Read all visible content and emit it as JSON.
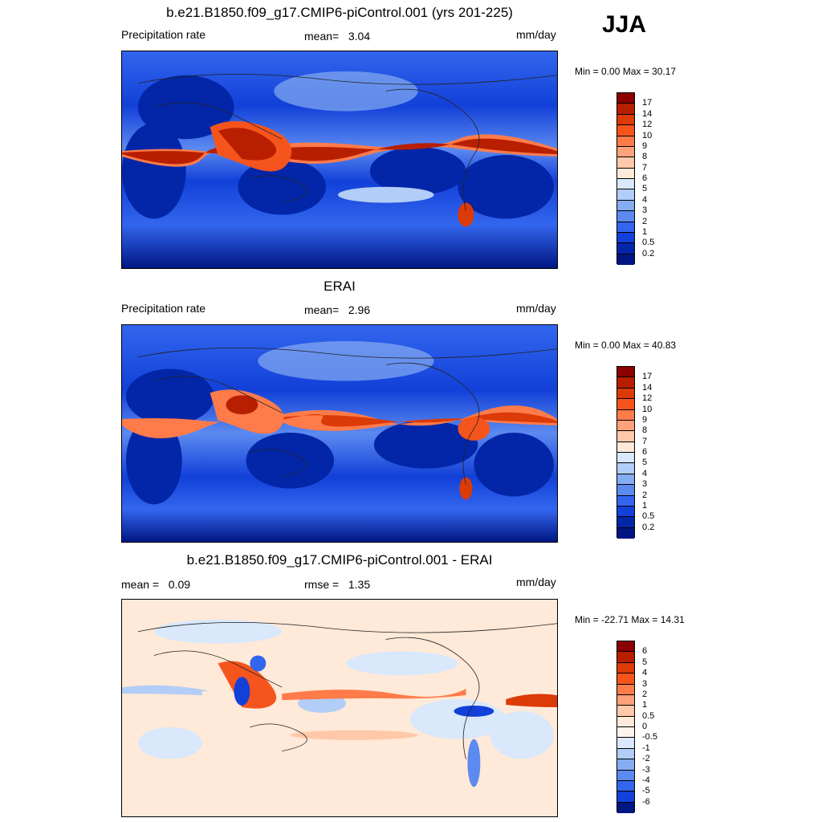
{
  "season": "JJA",
  "panels": [
    {
      "title": "b.e21.B1850.f09_g17.CMIP6-piControl.001 (yrs 201-225)",
      "left_label": "Precipitation rate",
      "center_label": "mean=",
      "center_value": "3.04",
      "units": "mm/day",
      "minmax": "Min =   0.00 Max =  30.17",
      "palette": "full"
    },
    {
      "title": "ERAI",
      "left_label": "Precipitation rate",
      "center_label": "mean=",
      "center_value": "2.96",
      "units": "mm/day",
      "minmax": "Min =   0.00 Max =  40.83",
      "palette": "full"
    },
    {
      "title": "b.e21.B1850.f09_g17.CMIP6-piControl.001 - ERAI",
      "left_label": "mean =",
      "left_value": "0.09",
      "center_label": "rmse =",
      "center_value": "1.35",
      "units": "mm/day",
      "minmax": "Min = -22.71 Max =  14.31",
      "palette": "diff"
    }
  ],
  "chart_data": [
    {
      "type": "heatmap",
      "title": "b.e21.B1850.f09_g17.CMIP6-piControl.001 (yrs 201-225)",
      "variable": "Precipitation rate",
      "units": "mm/day",
      "mean": 3.04,
      "min": 0.0,
      "max": 30.17,
      "colorbar_levels": [
        "17",
        "14",
        "12",
        "10",
        "9",
        "8",
        "7",
        "6",
        "5",
        "4",
        "3",
        "2",
        "1",
        "0.5",
        "0.2"
      ],
      "colors": [
        "#8b0000",
        "#b81e00",
        "#dc3a06",
        "#f5541d",
        "#ff7b4a",
        "#ffa17a",
        "#ffc8a8",
        "#ffe9d8",
        "#d9e8fb",
        "#b2cdf7",
        "#86acf2",
        "#5c8af0",
        "#3366ee",
        "#1240d8",
        "#0326a8",
        "#001683"
      ]
    },
    {
      "type": "heatmap",
      "title": "ERAI",
      "variable": "Precipitation rate",
      "units": "mm/day",
      "mean": 2.96,
      "min": 0.0,
      "max": 40.83,
      "colorbar_levels": [
        "17",
        "14",
        "12",
        "10",
        "9",
        "8",
        "7",
        "6",
        "5",
        "4",
        "3",
        "2",
        "1",
        "0.5",
        "0.2"
      ],
      "colors": [
        "#8b0000",
        "#b81e00",
        "#dc3a06",
        "#f5541d",
        "#ff7b4a",
        "#ffa17a",
        "#ffc8a8",
        "#ffe9d8",
        "#d9e8fb",
        "#b2cdf7",
        "#86acf2",
        "#5c8af0",
        "#3366ee",
        "#1240d8",
        "#0326a8",
        "#001683"
      ]
    },
    {
      "type": "heatmap",
      "title": "b.e21.B1850.f09_g17.CMIP6-piControl.001 - ERAI",
      "units": "mm/day",
      "mean": 0.09,
      "rmse": 1.35,
      "min": -22.71,
      "max": 14.31,
      "colorbar_levels": [
        "6",
        "5",
        "4",
        "3",
        "2",
        "1",
        "0.5",
        "0",
        "-0.5",
        "-1",
        "-2",
        "-3",
        "-4",
        "-5",
        "-6"
      ],
      "colors": [
        "#8b0000",
        "#b81e00",
        "#dc3a06",
        "#f5541d",
        "#ff7b4a",
        "#ffa17a",
        "#ffc8a8",
        "#ffe9d8",
        "#fdf4ee",
        "#d9e8fb",
        "#b2cdf7",
        "#86acf2",
        "#5c8af0",
        "#3366ee",
        "#1240d8",
        "#001683"
      ]
    }
  ]
}
